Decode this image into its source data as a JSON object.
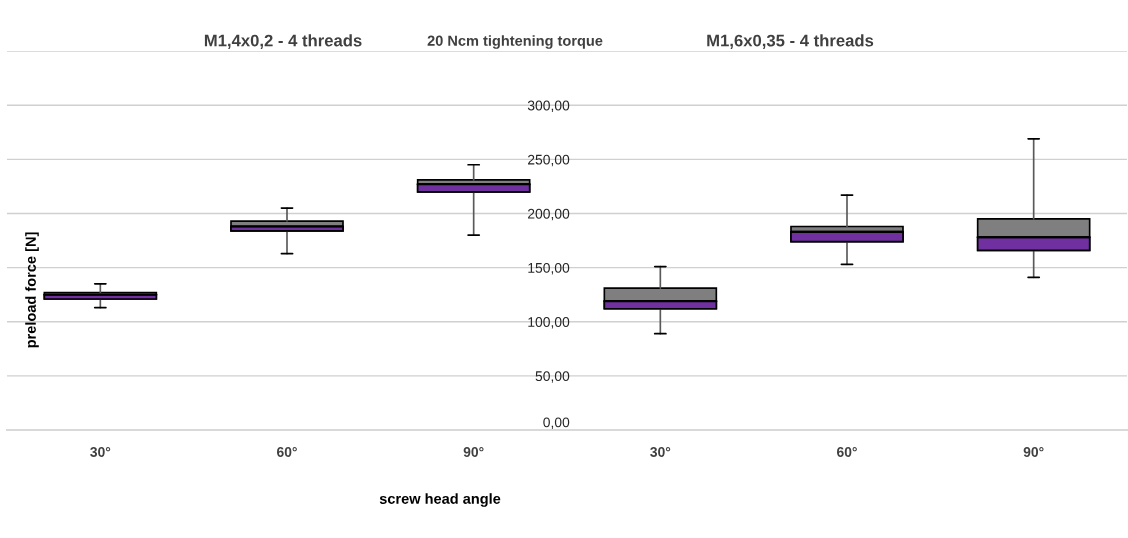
{
  "chart_data": {
    "type": "box",
    "title": "20 Ncm tightening torque",
    "annotations": [
      "M1,4x0,2 - 4 threads",
      "M1,6x0,35 - 4 threads"
    ],
    "xlabel": "screw head angle",
    "ylabel": "preload force [N]",
    "categories": [
      "30°",
      "60°",
      "90°",
      "30°",
      "60°",
      "90°"
    ],
    "series": [
      {
        "color": "#7030a0",
        "boxes": [
          {
            "low": 113,
            "q1": 121,
            "median": 125,
            "q3": 127,
            "high": 135
          },
          {
            "low": 163,
            "q1": 184,
            "median": 188,
            "q3": 193,
            "high": 205
          },
          {
            "low": 180,
            "q1": 220,
            "median": 227,
            "q3": 231,
            "high": 245
          },
          {
            "low": 89,
            "q1": 112,
            "median": 119,
            "q3": 131,
            "high": 151
          },
          {
            "low": 153,
            "q1": 174,
            "median": 183,
            "q3": 188,
            "high": 217
          },
          {
            "low": 141,
            "q1": 166,
            "median": 178,
            "q3": 195,
            "high": 269
          }
        ]
      }
    ],
    "ylim": [
      0,
      350
    ],
    "yticks": [
      {
        "value": 0,
        "label": "0,00"
      },
      {
        "value": 50,
        "label": "50,00"
      },
      {
        "value": 100,
        "label": "100,00"
      },
      {
        "value": 150,
        "label": "150,00"
      },
      {
        "value": 200,
        "label": "200,00"
      },
      {
        "value": 250,
        "label": "250,00"
      },
      {
        "value": 300,
        "label": "300,00"
      },
      {
        "value": 350,
        "label": null
      }
    ],
    "grid": "y"
  }
}
